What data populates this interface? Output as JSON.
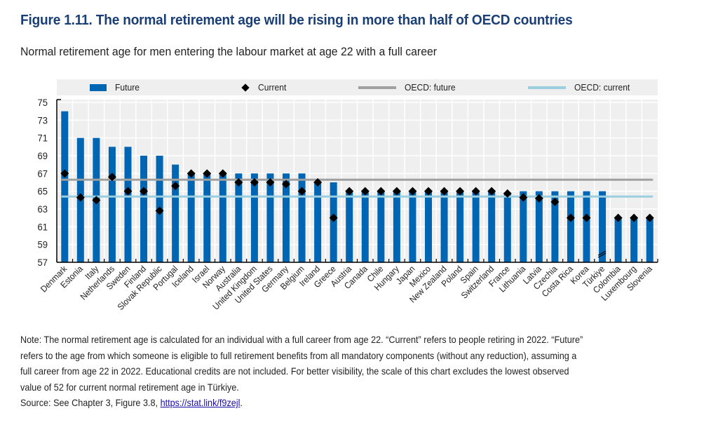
{
  "header": {
    "title": "Figure 1.11. The normal retirement age will be rising in more than half of OECD countries",
    "subtitle": "Normal retirement age for men entering the labour market at age 22 with a full career"
  },
  "legend": {
    "future": "Future",
    "current": "Current",
    "oecd_future": "OECD: future",
    "oecd_current": "OECD: current"
  },
  "colors": {
    "bar": "#0066b3",
    "diamond": "#000000",
    "oecd_future": "#a0a0a0",
    "oecd_current": "#9bcfe0",
    "plot_bg": "#efefef",
    "title": "#1a3f77"
  },
  "chart_data": {
    "type": "bar",
    "title": "Normal retirement age for men entering the labour market at age 22 with a full career",
    "xlabel": "",
    "ylabel": "",
    "ylim": [
      57,
      75
    ],
    "yticks": [
      57,
      59,
      61,
      63,
      65,
      67,
      69,
      71,
      73,
      75
    ],
    "grid": true,
    "legend_position": "top",
    "categories": [
      "Denmark",
      "Estonia",
      "Italy",
      "Netherlands",
      "Sweden",
      "Finland",
      "Slovak Republic",
      "Portugal",
      "Iceland",
      "Israel",
      "Norway",
      "Australia",
      "United Kingdom",
      "United States",
      "Germany",
      "Belgium",
      "Ireland",
      "Greece",
      "Austria",
      "Canada",
      "Chile",
      "Hungary",
      "Japan",
      "Mexico",
      "New Zealand",
      "Poland",
      "Spain",
      "Switzerland",
      "France",
      "Lithuania",
      "Latvia",
      "Czechia",
      "Costa Rica",
      "Korea",
      "Türkiye",
      "Colombia",
      "Luxembourg",
      "Slovenia"
    ],
    "series": [
      {
        "name": "Future",
        "kind": "bar",
        "values": [
          74,
          71,
          71,
          70,
          70,
          69,
          69,
          68,
          67,
          67,
          67,
          67,
          67,
          67,
          67,
          67,
          66,
          66,
          65,
          65,
          65,
          65,
          65,
          65,
          65,
          65,
          65,
          65,
          64.75,
          65,
          65,
          65,
          65,
          65,
          65,
          62,
          62,
          62
        ]
      },
      {
        "name": "Current",
        "kind": "marker",
        "values": [
          67,
          64.3,
          64,
          66.6,
          65,
          65,
          62.8,
          65.6,
          67,
          67,
          67,
          66,
          66,
          66,
          65.8,
          65,
          66,
          62,
          65,
          65,
          65,
          65,
          65,
          65,
          65,
          65,
          65,
          65,
          64.75,
          64.3,
          64.2,
          63.8,
          62,
          62,
          52,
          62,
          62,
          62
        ]
      },
      {
        "name": "OECD: future",
        "kind": "hline",
        "value": 66.3
      },
      {
        "name": "OECD: current",
        "kind": "hline",
        "value": 64.4
      }
    ],
    "annotations": [
      {
        "category": "Türkiye",
        "text": "axis break: current value 52 is below the displayed scale"
      }
    ]
  },
  "note": {
    "lines": [
      "Note: The normal retirement age is calculated for an individual with a full career from age 22. “Current” refers to people retiring in 2022. “Future”",
      "refers to the age from which someone is eligible to full retirement benefits from all mandatory components (without any reduction), assuming a",
      "full career from age 22 in 2022. Educational credits are not included. For better visibility, the scale of this chart excludes the lowest observed",
      "value of 52 for current normal retirement age in Türkiye."
    ],
    "source_prefix": "Source: See Chapter 3, Figure 3.8, ",
    "source_link": "https://stat.link/f9zejl",
    "source_suffix": "."
  }
}
